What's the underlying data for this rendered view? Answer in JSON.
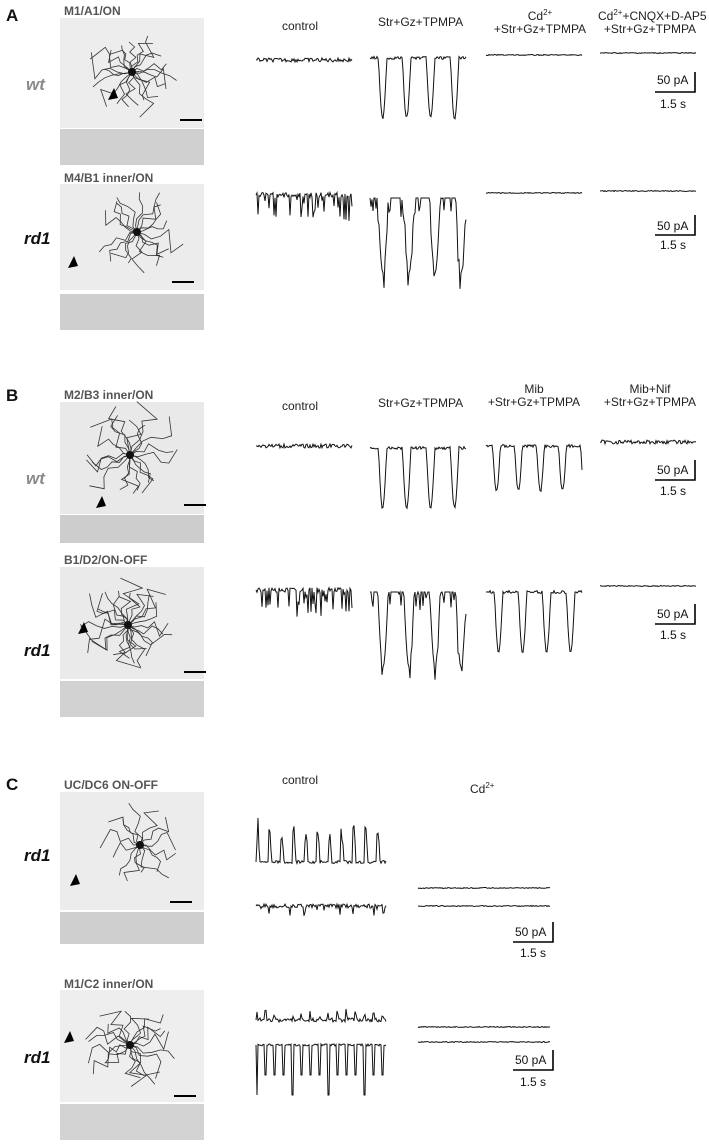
{
  "panels": [
    {
      "letter": "A",
      "conditions": [
        "control",
        "Str+Gz+TPMPA",
        "Cd2+",
        "+Str+Gz+TPMPA",
        "Cd2+ +CNQX+D-AP5",
        "+Str+Gz+TPMPA"
      ],
      "rows": [
        {
          "cell_label": "M1/A1/ON",
          "genotype": "wt"
        },
        {
          "cell_label": "M4/B1 inner/ON",
          "genotype": "rd1"
        }
      ]
    },
    {
      "letter": "B",
      "conditions": [
        "control",
        "Str+Gz+TPMPA",
        "Mib",
        "+Str+Gz+TPMPA",
        "Mib+Nif",
        "+Str+Gz+TPMPA"
      ],
      "rows": [
        {
          "cell_label": "M2/B3 inner/ON",
          "genotype": "wt"
        },
        {
          "cell_label": "B1/D2/ON-OFF",
          "genotype": "rd1"
        }
      ]
    },
    {
      "letter": "C",
      "conditions": [
        "control",
        "Cd2+"
      ],
      "rows": [
        {
          "cell_label": "UC/DC6 ON-OFF",
          "genotype": "rd1"
        },
        {
          "cell_label": "M1/C2 inner/ON",
          "genotype": "rd1"
        }
      ]
    }
  ],
  "scale": {
    "current": "50 pA",
    "time": "1.5 s"
  },
  "cd_base": "Cd",
  "cd_sup": "2+",
  "cd_cnqx_rest": "+CNQX+D-AP5"
}
